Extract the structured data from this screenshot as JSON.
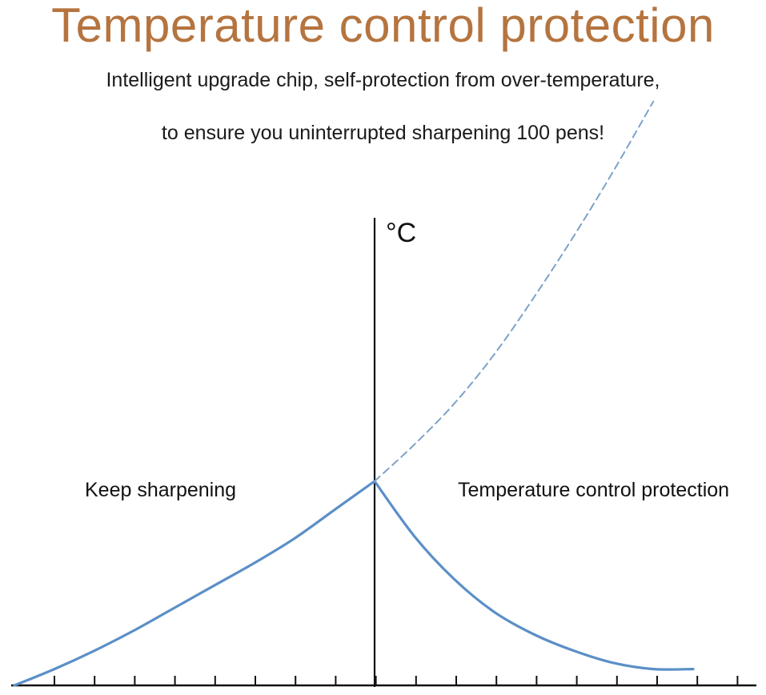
{
  "title": "Temperature control protection",
  "subtitle_line1": "Intelligent upgrade chip, self-protection from over-temperature,",
  "subtitle_line2": "to ensure you uninterrupted sharpening 100 pens!",
  "colors": {
    "title": "#b5743f",
    "curve": "#5b8fc7",
    "dashed": "#7da2c9",
    "axis": "#111111"
  },
  "chart_data": {
    "type": "line",
    "title": "",
    "xlabel": "",
    "ylabel": "°C",
    "grid": false,
    "x_tick_count": 18,
    "annotations": [
      {
        "text": "Keep sharpening"
      },
      {
        "text": "Temperature control protection"
      }
    ],
    "series": [
      {
        "style": "solid",
        "x": [
          0,
          1,
          2,
          3,
          4,
          5,
          6,
          7,
          8,
          9
        ],
        "y": [
          0,
          0.08,
          0.17,
          0.27,
          0.38,
          0.49,
          0.6,
          0.72,
          0.86,
          1.0
        ]
      },
      {
        "style": "solid",
        "x": [
          9,
          10,
          11,
          12,
          13,
          14,
          15,
          16,
          17
        ],
        "y": [
          1.0,
          0.73,
          0.52,
          0.36,
          0.25,
          0.17,
          0.11,
          0.08,
          0.08
        ]
      },
      {
        "style": "dashed",
        "x": [
          9,
          10,
          11,
          12,
          13,
          14,
          15,
          16
        ],
        "y": [
          1.0,
          1.18,
          1.38,
          1.62,
          1.9,
          2.2,
          2.52,
          2.86
        ]
      }
    ]
  }
}
